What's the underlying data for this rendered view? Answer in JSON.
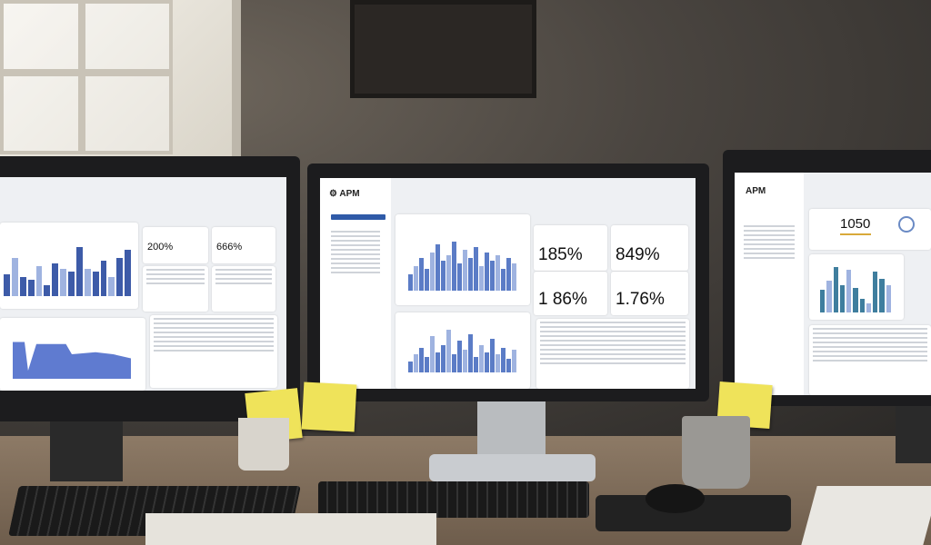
{
  "center": {
    "logo": "APM",
    "kpis": [
      {
        "value": "185%"
      },
      {
        "value": "849%"
      },
      {
        "value": "1 86%"
      },
      {
        "value": "1.76%"
      }
    ],
    "chart1_bars": [
      30,
      45,
      60,
      40,
      70,
      85,
      55,
      65,
      90,
      50,
      75,
      60,
      80,
      45,
      70,
      55,
      65,
      40,
      60,
      50
    ],
    "chart2_bars": [
      25,
      40,
      55,
      35,
      80,
      45,
      60,
      95,
      40,
      70,
      50,
      85,
      35,
      60,
      45,
      75,
      40,
      55,
      30,
      50
    ],
    "accent": "#5b7cc6"
  },
  "left": {
    "kpis": [
      {
        "value": "200%"
      },
      {
        "value": "666%"
      }
    ],
    "bars": [
      40,
      70,
      35,
      30,
      55,
      20,
      60,
      50,
      45,
      90,
      50,
      45,
      65,
      35,
      70,
      85
    ]
  },
  "right": {
    "logo": "APM",
    "kpi": "1050",
    "bars": [
      50,
      70,
      100,
      60,
      95,
      55,
      30,
      20,
      90,
      75,
      60
    ],
    "accent": "#3f7e9e"
  }
}
